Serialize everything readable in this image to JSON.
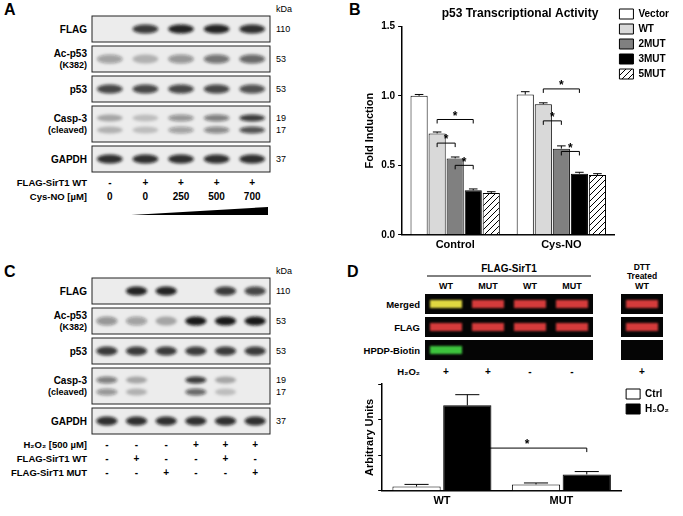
{
  "panels": [
    {
      "panel_label": "A",
      "type": "western_blot",
      "kda_header": "kDa",
      "lanes": 5,
      "rows": [
        {
          "label": "FLAG",
          "kda": [
            110
          ],
          "intensity": [
            [
              0,
              0.8,
              0.9,
              0.9,
              0.85
            ]
          ]
        },
        {
          "label": "Ac-p53",
          "sublabel": "(K382)",
          "kda": [
            53
          ],
          "intensity": [
            [
              0.35,
              0.25,
              0.4,
              0.55,
              0.6
            ]
          ]
        },
        {
          "label": "p53",
          "kda": [
            53
          ],
          "intensity": [
            [
              0.75,
              0.75,
              0.75,
              0.75,
              0.7
            ]
          ]
        },
        {
          "label": "Casp-3",
          "sublabel": "(cleaved)",
          "kda": [
            19,
            17
          ],
          "intensity": [
            [
              0.3,
              0.2,
              0.4,
              0.5,
              0.8
            ],
            [
              0.25,
              0.2,
              0.35,
              0.45,
              0.7
            ]
          ]
        },
        {
          "label": "GAPDH",
          "kda": [
            37
          ],
          "intensity": [
            [
              0.85,
              0.85,
              0.85,
              0.85,
              0.85
            ]
          ]
        }
      ],
      "conditions": [
        {
          "label": "FLAG-SirT1 WT",
          "values": [
            "-",
            "+",
            "+",
            "+",
            "+"
          ]
        },
        {
          "label": "Cys-NO [µM]",
          "values": [
            "0",
            "0",
            "250",
            "500",
            "700"
          ],
          "wedge": true
        }
      ]
    },
    {
      "panel_label": "C",
      "type": "western_blot",
      "kda_header": "kDa",
      "lanes": 6,
      "rows": [
        {
          "label": "FLAG",
          "kda": [
            110
          ],
          "intensity": [
            [
              0,
              0.9,
              0.9,
              0,
              0.8,
              0.75
            ]
          ]
        },
        {
          "label": "Ac-p53",
          "sublabel": "(K382)",
          "kda": [
            53
          ],
          "intensity": [
            [
              0.4,
              0.35,
              0.3,
              0.95,
              0.95,
              0.95
            ]
          ]
        },
        {
          "label": "p53",
          "kda": [
            53
          ],
          "intensity": [
            [
              0.8,
              0.8,
              0.8,
              0.8,
              0.8,
              0.8
            ]
          ]
        },
        {
          "label": "Casp-3",
          "sublabel": "(cleaved)",
          "kda": [
            19,
            17
          ],
          "intensity": [
            [
              0.5,
              0.3,
              0,
              0.8,
              0.3,
              0
            ],
            [
              0.4,
              0.25,
              0,
              0.6,
              0.2,
              0
            ]
          ]
        },
        {
          "label": "GAPDH",
          "kda": [
            37
          ],
          "intensity": [
            [
              0.85,
              0.85,
              0.85,
              0.85,
              0.85,
              0.85
            ]
          ]
        }
      ],
      "conditions": [
        {
          "label": "H₂O₂ [500 µM]",
          "values": [
            "-",
            "-",
            "-",
            "+",
            "+",
            "+"
          ]
        },
        {
          "label": "FLAG-SirT1 WT",
          "values": [
            "-",
            "+",
            "-",
            "-",
            "+",
            "-"
          ]
        },
        {
          "label": "FLAG-SirT1 MUT",
          "values": [
            "-",
            "-",
            "+",
            "-",
            "-",
            "+"
          ]
        }
      ]
    },
    {
      "panel_label": "D",
      "type": "fluorescence_blot",
      "header": "FLAG-SirT1",
      "lanes": [
        "WT",
        "MUT",
        "WT",
        "MUT"
      ],
      "rows": [
        {
          "label": "Merged",
          "colors": [
            "#e0d840",
            "#d43a3a",
            "#d43a3a",
            "#d43a3a"
          ]
        },
        {
          "label": "FLAG",
          "colors": [
            "#d43a3a",
            "#d43a3a",
            "#d43a3a",
            "#d43a3a"
          ]
        },
        {
          "label": "HPDP-Biotin",
          "colors": [
            "#3cc43c",
            null,
            null,
            null
          ]
        }
      ],
      "condition": {
        "label": "H₂O₂",
        "values": [
          "+",
          "+",
          "-",
          "-"
        ]
      },
      "extra_lane": {
        "header": "DTT Treated",
        "lane": "WT",
        "colors": [
          "#d43a3a",
          "#d43a3a",
          null
        ],
        "condition": "+"
      }
    }
  ],
  "chart_data": [
    {
      "panel_label": "B",
      "type": "bar",
      "title": "p53 Transcriptional Activity",
      "y_label": "Fold Induction",
      "categories": [
        "Control",
        "Cys-NO"
      ],
      "series": [
        {
          "name": "Vector",
          "color": "#ffffff",
          "values": [
            1.0,
            1.01
          ],
          "errors": [
            0.01,
            0.02
          ]
        },
        {
          "name": "WT",
          "color": "#d9d9d9",
          "values": [
            0.73,
            0.94
          ],
          "errors": [
            0.01,
            0.01
          ]
        },
        {
          "name": "2MUT",
          "color": "#808080",
          "values": [
            0.55,
            0.62
          ],
          "errors": [
            0.01,
            0.02
          ]
        },
        {
          "name": "3MUT",
          "color": "#000000",
          "values": [
            0.32,
            0.44
          ],
          "errors": [
            0.01,
            0.01
          ]
        },
        {
          "name": "5MUT",
          "color": "#ffffff",
          "marker": "hatched",
          "values": [
            0.3,
            0.43
          ],
          "errors": [
            0.01,
            0.01
          ]
        }
      ],
      "ylim": [
        0,
        1.5
      ],
      "yticks": [
        {
          "value": 0,
          "label": "0.0"
        },
        0.5,
        {
          "value": 1,
          "label": "1.0"
        },
        1.5
      ],
      "grid": false,
      "legend": "right",
      "annotations": [
        {
          "from": [
            "Control",
            "WT"
          ],
          "to": [
            "Control",
            "3MUT"
          ],
          "y": 0.83,
          "label": "*"
        },
        {
          "from": [
            "Control",
            "WT"
          ],
          "to": [
            "Control",
            "2MUT"
          ],
          "y": 0.66,
          "label": "*"
        },
        {
          "from": [
            "Control",
            "2MUT"
          ],
          "to": [
            "Control",
            "3MUT"
          ],
          "y": 0.5,
          "label": "*"
        },
        {
          "from": [
            "Cys-NO",
            "WT"
          ],
          "to": [
            "Cys-NO",
            "3MUT"
          ],
          "y": 1.05,
          "label": "*"
        },
        {
          "from": [
            "Cys-NO",
            "WT"
          ],
          "to": [
            "Cys-NO",
            "2MUT"
          ],
          "y": 0.82,
          "label": "*"
        },
        {
          "from": [
            "Cys-NO",
            "2MUT"
          ],
          "to": [
            "Cys-NO",
            "3MUT"
          ],
          "y": 0.6,
          "label": "*"
        }
      ]
    },
    {
      "type": "bar",
      "y_label": "Arbitrary Units",
      "categories": [
        "WT",
        "MUT"
      ],
      "series": [
        {
          "name": "Ctrl",
          "color": "#ffffff",
          "values": [
            60,
            90
          ],
          "errors": [
            30,
            20
          ]
        },
        {
          "name": "H₂O₂",
          "color": "#000000",
          "values": [
            1200,
            230
          ],
          "errors": [
            150,
            40
          ]
        }
      ],
      "ylim": [
        0,
        1500
      ],
      "yticks": [
        0,
        500,
        1000,
        1500
      ],
      "grid": false,
      "tick_labels": "x",
      "legend": "top-right",
      "annotations": [
        {
          "from": [
            "WT",
            "H₂O₂"
          ],
          "to": [
            "MUT",
            "H₂O₂"
          ],
          "y": 600,
          "label": "*"
        }
      ]
    }
  ]
}
